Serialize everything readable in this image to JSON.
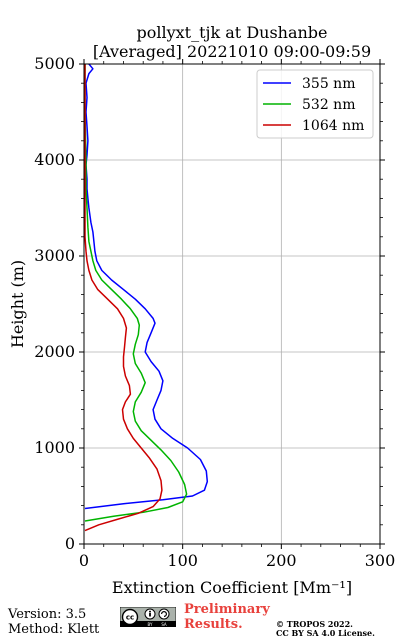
{
  "chart_data": {
    "type": "line",
    "title_line1": "pollyxt_tjk at Dushanbe",
    "title_line2": "[Averaged] 20221010 09:00-09:59",
    "xlabel": "Extinction Coefficient [Mm⁻¹]",
    "ylabel": "Height (m)",
    "xlim": [
      0,
      300
    ],
    "ylim": [
      0,
      5000
    ],
    "xticks": [
      0,
      100,
      200,
      300
    ],
    "yticks": [
      0,
      1000,
      2000,
      3000,
      4000,
      5000
    ],
    "grid": true,
    "legend_position": "top-right",
    "series": [
      {
        "name": "355 nm",
        "color": "#0000ff",
        "points": [
          [
            1,
            370
          ],
          [
            40,
            420
          ],
          [
            80,
            460
          ],
          [
            110,
            500
          ],
          [
            122,
            560
          ],
          [
            125,
            650
          ],
          [
            124,
            760
          ],
          [
            118,
            880
          ],
          [
            105,
            1000
          ],
          [
            90,
            1100
          ],
          [
            78,
            1200
          ],
          [
            72,
            1300
          ],
          [
            70,
            1400
          ],
          [
            74,
            1500
          ],
          [
            78,
            1600
          ],
          [
            80,
            1700
          ],
          [
            76,
            1800
          ],
          [
            68,
            1900
          ],
          [
            62,
            2000
          ],
          [
            64,
            2100
          ],
          [
            68,
            2200
          ],
          [
            72,
            2300
          ],
          [
            70,
            2350
          ],
          [
            62,
            2450
          ],
          [
            52,
            2550
          ],
          [
            40,
            2650
          ],
          [
            28,
            2750
          ],
          [
            18,
            2850
          ],
          [
            13,
            2950
          ],
          [
            11,
            3050
          ],
          [
            10,
            3150
          ],
          [
            9,
            3250
          ],
          [
            7,
            3350
          ],
          [
            5,
            3500
          ],
          [
            4,
            3600
          ],
          [
            3,
            3700
          ],
          [
            3,
            3800
          ],
          [
            2,
            3950
          ],
          [
            3,
            4050
          ],
          [
            4,
            4200
          ],
          [
            3,
            4350
          ],
          [
            2,
            4500
          ],
          [
            3,
            4650
          ],
          [
            2,
            4800
          ],
          [
            5,
            4900
          ],
          [
            9,
            4950
          ],
          [
            5,
            5000
          ]
        ]
      },
      {
        "name": "532 nm",
        "color": "#00b400",
        "points": [
          [
            1,
            240
          ],
          [
            30,
            290
          ],
          [
            60,
            330
          ],
          [
            85,
            380
          ],
          [
            100,
            440
          ],
          [
            104,
            520
          ],
          [
            102,
            620
          ],
          [
            96,
            750
          ],
          [
            88,
            870
          ],
          [
            78,
            980
          ],
          [
            68,
            1080
          ],
          [
            58,
            1180
          ],
          [
            52,
            1280
          ],
          [
            50,
            1380
          ],
          [
            52,
            1480
          ],
          [
            58,
            1580
          ],
          [
            62,
            1680
          ],
          [
            58,
            1780
          ],
          [
            52,
            1880
          ],
          [
            50,
            1980
          ],
          [
            52,
            2080
          ],
          [
            55,
            2180
          ],
          [
            56,
            2280
          ],
          [
            54,
            2350
          ],
          [
            47,
            2450
          ],
          [
            38,
            2550
          ],
          [
            28,
            2650
          ],
          [
            18,
            2750
          ],
          [
            12,
            2850
          ],
          [
            9,
            2950
          ],
          [
            7,
            3050
          ],
          [
            5,
            3150
          ],
          [
            4,
            3300
          ],
          [
            3,
            3500
          ],
          [
            2,
            3700
          ],
          [
            2,
            4000
          ],
          [
            1,
            4500
          ],
          [
            1,
            5000
          ]
        ]
      },
      {
        "name": "1064 nm",
        "color": "#cc0000",
        "points": [
          [
            1,
            140
          ],
          [
            15,
            200
          ],
          [
            35,
            260
          ],
          [
            55,
            320
          ],
          [
            70,
            390
          ],
          [
            77,
            470
          ],
          [
            79,
            560
          ],
          [
            78,
            660
          ],
          [
            74,
            780
          ],
          [
            66,
            900
          ],
          [
            58,
            1000
          ],
          [
            50,
            1100
          ],
          [
            44,
            1200
          ],
          [
            40,
            1300
          ],
          [
            39,
            1400
          ],
          [
            42,
            1480
          ],
          [
            47,
            1560
          ],
          [
            46,
            1650
          ],
          [
            42,
            1750
          ],
          [
            40,
            1850
          ],
          [
            40,
            1950
          ],
          [
            41,
            2050
          ],
          [
            42,
            2150
          ],
          [
            43,
            2250
          ],
          [
            40,
            2350
          ],
          [
            34,
            2450
          ],
          [
            24,
            2550
          ],
          [
            14,
            2650
          ],
          [
            8,
            2750
          ],
          [
            5,
            2850
          ],
          [
            3,
            2950
          ],
          [
            2,
            3050
          ],
          [
            1,
            3200
          ],
          [
            1,
            3500
          ],
          [
            1,
            4000
          ],
          [
            1,
            5000
          ]
        ]
      }
    ]
  },
  "footer": {
    "version": "Version: 3.5",
    "method": "Method: Klett",
    "cc_label": "cc by sa",
    "preliminary_line1": "Preliminary",
    "preliminary_line2": "Results.",
    "copyright_line1": "© TROPOS 2022.",
    "copyright_line2": "CC BY SA 4.0 License."
  }
}
